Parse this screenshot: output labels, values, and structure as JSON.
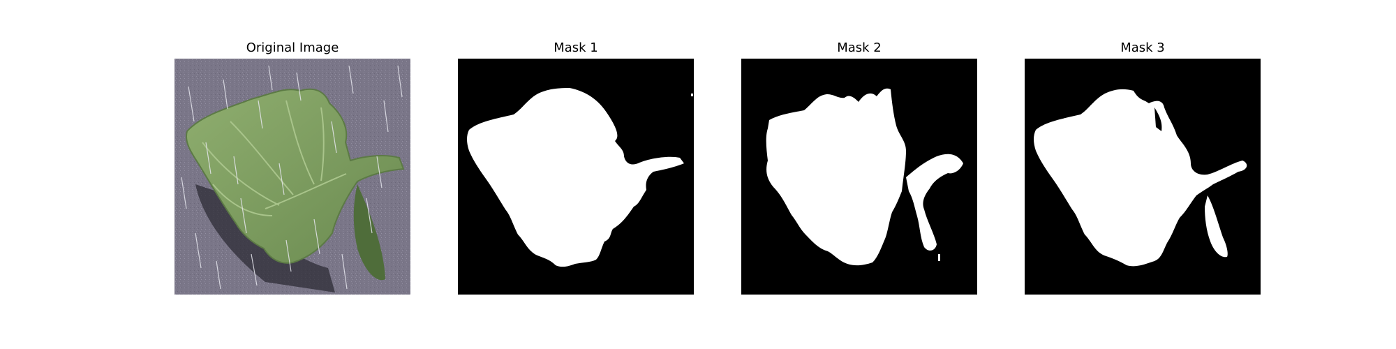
{
  "figure": {
    "panels": [
      {
        "title": "Original Image",
        "kind": "photo",
        "subject": "leaf-photo"
      },
      {
        "title": "Mask 1",
        "kind": "mask"
      },
      {
        "title": "Mask 2",
        "kind": "mask"
      },
      {
        "title": "Mask 3",
        "kind": "mask"
      }
    ],
    "colors": {
      "mask_foreground": "#ffffff",
      "mask_background": "#000000",
      "photo_background": "#7a7688",
      "leaf_green": "#7f9c62",
      "leaf_dark": "#5c7a45",
      "rain_streak": "#e6e6ee"
    }
  }
}
